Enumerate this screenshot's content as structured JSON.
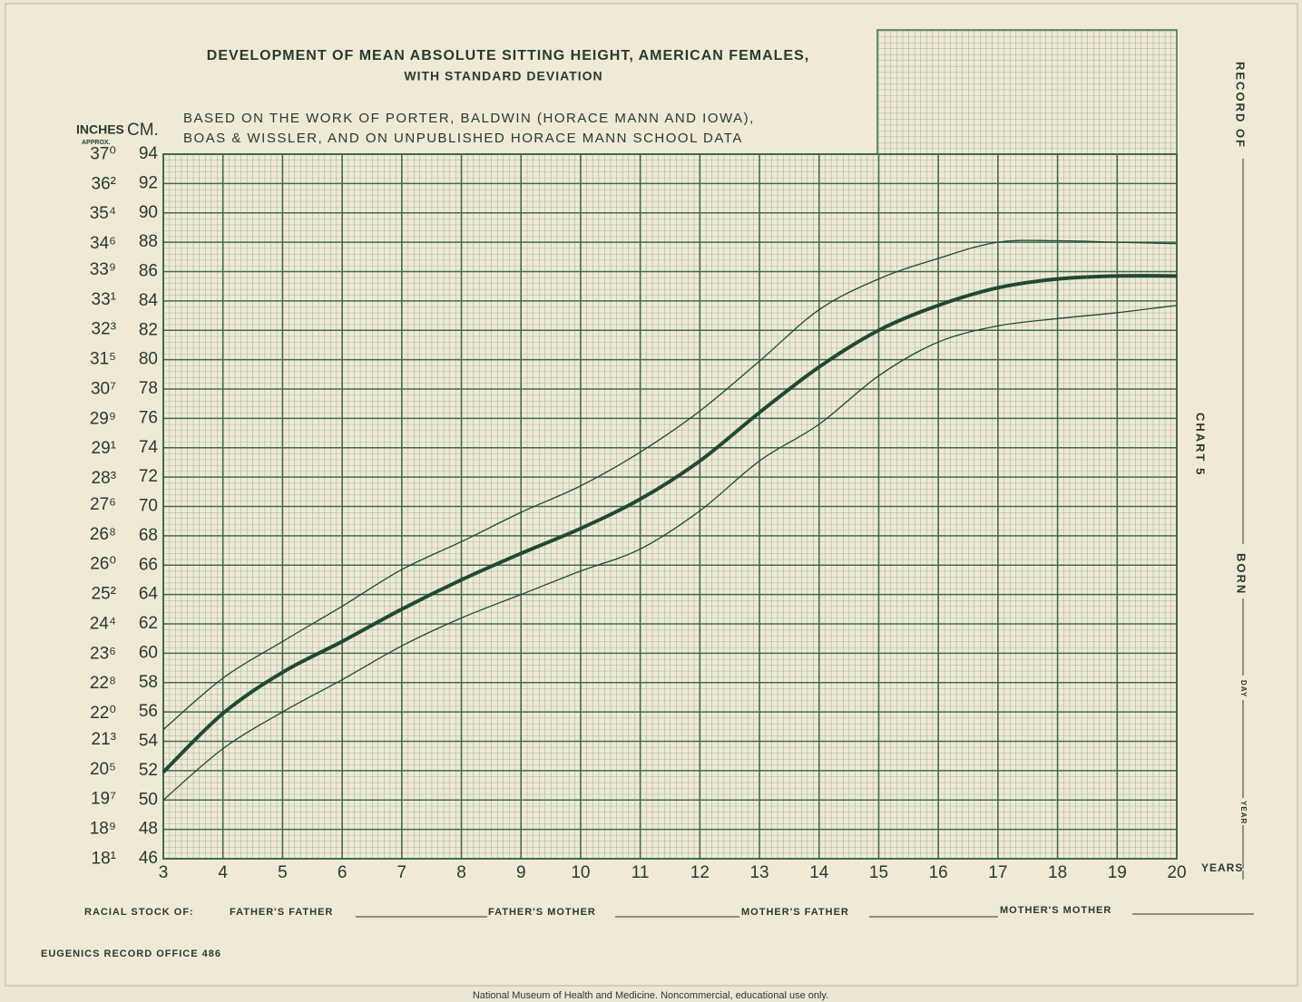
{
  "chart_data": {
    "type": "line",
    "title": [
      "DEVELOPMENT OF MEAN ABSOLUTE SITTING HEIGHT, AMERICAN FEMALES,",
      "WITH STANDARD DEVIATION"
    ],
    "subtitle": [
      "BASED ON THE WORK OF PORTER, BALDWIN (HORACE MANN AND IOWA),",
      "BOAS & WISSLER, AND ON UNPUBLISHED HORACE MANN SCHOOL DATA"
    ],
    "y_label": "CM.",
    "y2_label": "INCHES",
    "y2_sublabel": "APPROX.",
    "x_label": "YEARS",
    "x": [
      3,
      4,
      5,
      6,
      7,
      8,
      9,
      10,
      11,
      12,
      13,
      14,
      15,
      16,
      17,
      18,
      19,
      20
    ],
    "series": [
      {
        "color": "#1f4a30",
        "line_width": 1.3,
        "values": [
          54.8,
          58.3,
          60.8,
          63.2,
          65.7,
          67.6,
          69.6,
          71.4,
          73.7,
          76.5,
          79.9,
          83.4,
          85.5,
          86.9,
          88.0,
          88.1,
          88.0,
          87.9
        ]
      },
      {
        "color": "#1f4a30",
        "line_width": 4,
        "values": [
          51.9,
          55.9,
          58.7,
          60.8,
          63.0,
          65.0,
          66.8,
          68.5,
          70.5,
          73.1,
          76.4,
          79.5,
          82.0,
          83.7,
          84.9,
          85.5,
          85.7,
          85.7
        ]
      },
      {
        "color": "#1f4a30",
        "line_width": 1.3,
        "values": [
          50.0,
          53.5,
          56.0,
          58.2,
          60.5,
          62.4,
          64.0,
          65.6,
          67.1,
          69.7,
          73.1,
          75.6,
          78.9,
          81.2,
          82.3,
          82.8,
          83.2,
          83.7
        ]
      }
    ],
    "xlim": [
      3,
      20
    ],
    "xticks": [
      3,
      4,
      5,
      6,
      7,
      8,
      9,
      10,
      11,
      12,
      13,
      14,
      15,
      16,
      17,
      18,
      19,
      20
    ],
    "ylim": [
      46,
      94
    ],
    "yticks": [
      46,
      48,
      50,
      52,
      54,
      56,
      58,
      60,
      62,
      64,
      66,
      68,
      70,
      72,
      74,
      76,
      78,
      80,
      82,
      84,
      86,
      88,
      90,
      92,
      94
    ],
    "y2lim": [
      18.11,
      37.01
    ],
    "y2ticks": [
      {
        "value": 18.1,
        "label": "18¹"
      },
      {
        "value": 18.9,
        "label": "18⁹"
      },
      {
        "value": 19.7,
        "label": "19⁷"
      },
      {
        "value": 20.5,
        "label": "20⁵"
      },
      {
        "value": 21.3,
        "label": "21³"
      },
      {
        "value": 22.0,
        "label": "22⁰"
      },
      {
        "value": 22.8,
        "label": "22⁸"
      },
      {
        "value": 23.6,
        "label": "23⁶"
      },
      {
        "value": 24.4,
        "label": "24⁴"
      },
      {
        "value": 25.2,
        "label": "25²"
      },
      {
        "value": 26.0,
        "label": "26⁰"
      },
      {
        "value": 26.8,
        "label": "26⁸"
      },
      {
        "value": 27.6,
        "label": "27⁶"
      },
      {
        "value": 28.3,
        "label": "28³"
      },
      {
        "value": 29.1,
        "label": "29¹"
      },
      {
        "value": 29.9,
        "label": "29⁹"
      },
      {
        "value": 30.7,
        "label": "30⁷"
      },
      {
        "value": 31.5,
        "label": "31⁵"
      },
      {
        "value": 32.3,
        "label": "32³"
      },
      {
        "value": 33.1,
        "label": "33¹"
      },
      {
        "value": 33.9,
        "label": "33⁹"
      },
      {
        "value": 34.6,
        "label": "34⁶"
      },
      {
        "value": 35.4,
        "label": "35⁴"
      },
      {
        "value": 36.2,
        "label": "36²"
      },
      {
        "value": 37.0,
        "label": "37⁰"
      }
    ],
    "grid": true,
    "grid_color": "#3f6b4c"
  },
  "form": {
    "record_of": "RECORD OF",
    "chart": "CHART 5",
    "born": "BORN",
    "day": "DAY",
    "year": "YEAR",
    "racial_stock": "RACIAL STOCK OF:",
    "fathers_father": "FATHER'S FATHER",
    "fathers_mother": "FATHER'S MOTHER",
    "mothers_father": "MOTHER'S FATHER",
    "mothers_mother": "MOTHER'S MOTHER",
    "office": "EUGENICS RECORD OFFICE 486"
  },
  "credit": "National Museum of Health and Medicine. Noncommercial, educational use only."
}
